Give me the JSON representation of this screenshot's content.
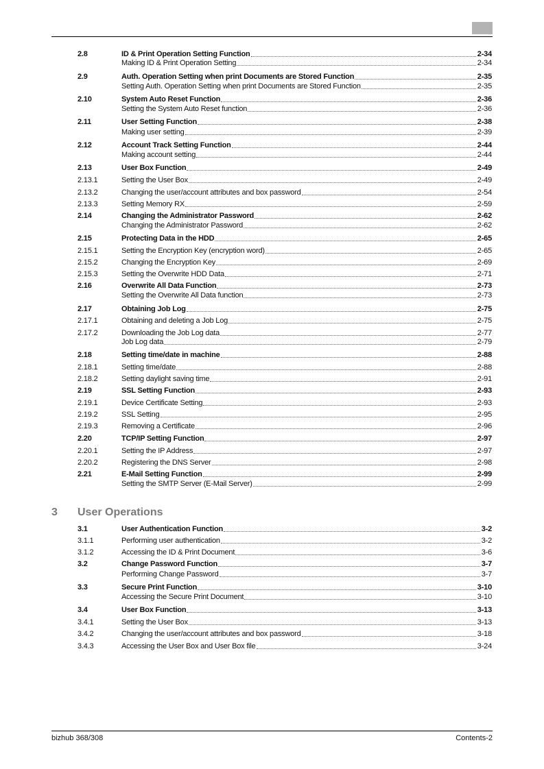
{
  "header": {
    "tab_color": "#b3b3b3"
  },
  "chapter3": {
    "number": "3",
    "title": "User Operations"
  },
  "entries": [
    {
      "num": "2.8",
      "title": "ID & Print Operation Setting Function",
      "page": "2-34",
      "bold": true
    },
    {
      "num": "",
      "title": "Making ID & Print Operation Setting",
      "page": "2-34",
      "bold": false
    },
    {
      "num": "2.9",
      "title": "Auth. Operation Setting when print Documents are Stored Function",
      "page": "2-35",
      "bold": true
    },
    {
      "num": "",
      "title": "Setting Auth. Operation Setting when print Documents are Stored Function",
      "page": "2-35",
      "bold": false
    },
    {
      "num": "2.10",
      "title": "System Auto Reset Function",
      "page": "2-36",
      "bold": true
    },
    {
      "num": "",
      "title": "Setting the System Auto Reset function",
      "page": "2-36",
      "bold": false
    },
    {
      "num": "2.11",
      "title": "User Setting Function",
      "page": "2-38",
      "bold": true
    },
    {
      "num": "",
      "title": "Making user setting",
      "page": "2-39",
      "bold": false
    },
    {
      "num": "2.12",
      "title": "Account Track Setting Function",
      "page": "2-44",
      "bold": true
    },
    {
      "num": "",
      "title": "Making account setting",
      "page": "2-44",
      "bold": false
    },
    {
      "num": "2.13",
      "title": "User Box Function",
      "page": "2-49",
      "bold": true
    },
    {
      "num": "2.13.1",
      "title": "Setting the User Box",
      "page": "2-49",
      "bold": false
    },
    {
      "num": "2.13.2",
      "title": "Changing the user/account attributes and box password",
      "page": "2-54",
      "bold": false
    },
    {
      "num": "2.13.3",
      "title": "Setting Memory RX",
      "page": "2-59",
      "bold": false
    },
    {
      "num": "2.14",
      "title": "Changing the Administrator Password",
      "page": "2-62",
      "bold": true
    },
    {
      "num": "",
      "title": "Changing the Administrator Password",
      "page": "2-62",
      "bold": false
    },
    {
      "num": "2.15",
      "title": "Protecting Data in the HDD",
      "page": "2-65",
      "bold": true
    },
    {
      "num": "2.15.1",
      "title": "Setting the Encryption Key (encryption word)",
      "page": "2-65",
      "bold": false
    },
    {
      "num": "2.15.2",
      "title": "Changing the Encryption Key",
      "page": "2-69",
      "bold": false
    },
    {
      "num": "2.15.3",
      "title": "Setting the Overwrite HDD Data",
      "page": "2-71",
      "bold": false
    },
    {
      "num": "2.16",
      "title": "Overwrite All Data Function",
      "page": "2-73",
      "bold": true
    },
    {
      "num": "",
      "title": "Setting the Overwrite All Data function",
      "page": "2-73",
      "bold": false
    },
    {
      "num": "2.17",
      "title": "Obtaining Job Log",
      "page": "2-75",
      "bold": true
    },
    {
      "num": "2.17.1",
      "title": "Obtaining and deleting a Job Log",
      "page": "2-75",
      "bold": false
    },
    {
      "num": "2.17.2",
      "title": "Downloading the Job Log data",
      "page": "2-77",
      "bold": false
    },
    {
      "num": "",
      "title": "Job Log data",
      "page": "2-79",
      "bold": false
    },
    {
      "num": "2.18",
      "title": "Setting time/date in machine",
      "page": "2-88",
      "bold": true
    },
    {
      "num": "2.18.1",
      "title": "Setting time/date",
      "page": "2-88",
      "bold": false
    },
    {
      "num": "2.18.2",
      "title": "Setting daylight saving time",
      "page": "2-91",
      "bold": false
    },
    {
      "num": "2.19",
      "title": "SSL Setting Function",
      "page": "2-93",
      "bold": true
    },
    {
      "num": "2.19.1",
      "title": "Device Certificate Setting",
      "page": "2-93",
      "bold": false
    },
    {
      "num": "2.19.2",
      "title": "SSL Setting",
      "page": "2-95",
      "bold": false
    },
    {
      "num": "2.19.3",
      "title": "Removing a Certificate",
      "page": "2-96",
      "bold": false
    },
    {
      "num": "2.20",
      "title": "TCP/IP Setting Function",
      "page": "2-97",
      "bold": true
    },
    {
      "num": "2.20.1",
      "title": "Setting the IP Address",
      "page": "2-97",
      "bold": false
    },
    {
      "num": "2.20.2",
      "title": "Registering the DNS Server",
      "page": "2-98",
      "bold": false
    },
    {
      "num": "2.21",
      "title": "E-Mail Setting Function",
      "page": "2-99",
      "bold": true
    },
    {
      "num": "",
      "title": "Setting the SMTP Server (E-Mail Server)",
      "page": "2-99",
      "bold": false
    },
    {
      "num": "3.1",
      "title": "User Authentication Function",
      "page": "3-2",
      "bold": true
    },
    {
      "num": "3.1.1",
      "title": "Performing user authentication",
      "page": "3-2",
      "bold": false
    },
    {
      "num": "3.1.2",
      "title": "Accessing the ID & Print Document",
      "page": "3-6",
      "bold": false
    },
    {
      "num": "3.2",
      "title": "Change Password Function",
      "page": "3-7",
      "bold": true
    },
    {
      "num": "",
      "title": "Performing Change Password",
      "page": "3-7",
      "bold": false
    },
    {
      "num": "3.3",
      "title": "Secure Print Function",
      "page": "3-10",
      "bold": true
    },
    {
      "num": "",
      "title": "Accessing the Secure Print Document",
      "page": "3-10",
      "bold": false
    },
    {
      "num": "3.4",
      "title": "User Box Function",
      "page": "3-13",
      "bold": true
    },
    {
      "num": "3.4.1",
      "title": "Setting the User Box",
      "page": "3-13",
      "bold": false
    },
    {
      "num": "3.4.2",
      "title": "Changing the user/account attributes and box password",
      "page": "3-18",
      "bold": false
    },
    {
      "num": "3.4.3",
      "title": "Accessing the User Box and User Box file",
      "page": "3-24",
      "bold": false
    }
  ],
  "footer": {
    "left": "bizhub 368/308",
    "right": "Contents-2"
  }
}
